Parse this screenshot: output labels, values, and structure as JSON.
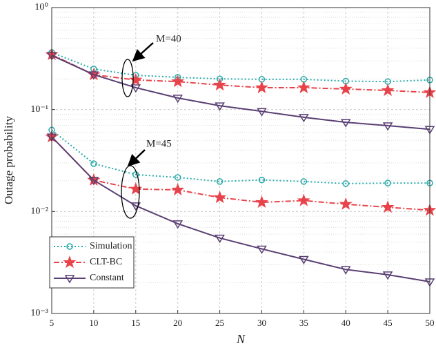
{
  "chart_data": {
    "type": "line",
    "x_label": "N",
    "y_label": "Outage probability",
    "x": [
      5,
      10,
      15,
      20,
      25,
      30,
      35,
      40,
      45,
      50
    ],
    "xlim": [
      5,
      50
    ],
    "xticks": [
      5,
      10,
      15,
      20,
      25,
      30,
      35,
      40,
      45,
      50
    ],
    "ylim": [
      0.001,
      1
    ],
    "log_y": true,
    "grid": true,
    "legend": "lower left",
    "yticks": [
      {
        "value": 1,
        "label": "10⁰"
      },
      {
        "value": 0.1,
        "label": "10⁻¹"
      },
      {
        "value": 0.01,
        "label": "10⁻²"
      },
      {
        "value": 0.001,
        "label": "10⁻³"
      }
    ],
    "groups": [
      {
        "label": "M=40",
        "series": [
          {
            "name": "Simulation",
            "color": "#27a9a9",
            "marker": "circle",
            "dash": "2,3",
            "values": [
              0.363,
              0.25,
              0.217,
              0.207,
              0.2,
              0.198,
              0.198,
              0.19,
              0.188,
              0.195
            ]
          },
          {
            "name": "CLT-BC",
            "color": "#e8434a",
            "marker": "star",
            "dash": "8,3,2,3",
            "values": [
              0.346,
              0.22,
              0.195,
              0.188,
              0.174,
              0.164,
              0.164,
              0.159,
              0.154,
              0.147
            ]
          },
          {
            "name": "Constant",
            "color": "#5a3f73",
            "marker": "triangle-down",
            "dash": "none",
            "values": [
              0.34,
              0.22,
              0.164,
              0.13,
              0.109,
              0.096,
              0.084,
              0.075,
              0.0695,
              0.064
            ]
          }
        ]
      },
      {
        "label": "M=45",
        "series": [
          {
            "name": "Simulation",
            "color": "#27a9a9",
            "marker": "circle",
            "dash": "2,3",
            "values": [
              0.063,
              0.0295,
              0.023,
              0.0216,
              0.0197,
              0.0204,
              0.0197,
              0.0188,
              0.019,
              0.019
            ]
          },
          {
            "name": "CLT-BC",
            "color": "#e8434a",
            "marker": "star",
            "dash": "8,3,2,3",
            "values": [
              0.054,
              0.0203,
              0.0166,
              0.0163,
              0.0137,
              0.0123,
              0.0128,
              0.0118,
              0.011,
              0.0103
            ]
          },
          {
            "name": "Constant",
            "color": "#5a3f73",
            "marker": "triangle-down",
            "dash": "none",
            "values": [
              0.054,
              0.0203,
              0.0114,
              0.0076,
              0.0055,
              0.0043,
              0.0034,
              0.0027,
              0.0024,
              0.00205
            ]
          }
        ]
      }
    ]
  }
}
